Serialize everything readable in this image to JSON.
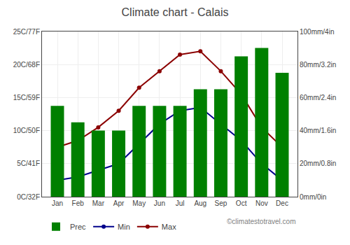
{
  "chart_data": {
    "type": "bar",
    "title": "Climate chart - Calais",
    "categories": [
      "Jan",
      "Feb",
      "Mar",
      "Apr",
      "May",
      "Jun",
      "Jul",
      "Aug",
      "Sep",
      "Oct",
      "Nov",
      "Dec"
    ],
    "series": [
      {
        "name": "Prec",
        "type": "bar",
        "axis": "y2",
        "color": "#008000",
        "values": [
          55,
          45,
          40,
          40,
          55,
          55,
          55,
          65,
          65,
          85,
          90,
          75
        ]
      },
      {
        "name": "Min",
        "type": "line",
        "color": "#00008B",
        "marker": "circle",
        "line_style": "solid",
        "values": [
          2.5,
          3,
          4,
          5,
          8,
          11,
          13,
          13.5,
          11,
          8.5,
          5,
          2.5
        ]
      },
      {
        "name": "Max",
        "type": "line",
        "color": "#8B0000",
        "marker": "circle",
        "line_style": "solid",
        "values": [
          7.5,
          8.5,
          10.5,
          13,
          16.5,
          19,
          21.5,
          22,
          19,
          15.5,
          10.5,
          7.5
        ]
      }
    ],
    "ylim": [
      0,
      25
    ],
    "yticks": [
      {
        "value": 0,
        "label": "0C/32F"
      },
      {
        "value": 5,
        "label": "5C/41F"
      },
      {
        "value": 10,
        "label": "10C/50F"
      },
      {
        "value": 15,
        "label": "15C/59F"
      },
      {
        "value": 20,
        "label": "20C/68F"
      },
      {
        "value": 25,
        "label": "25C/77F"
      }
    ],
    "y2lim": [
      0,
      100
    ],
    "y2ticks": [
      {
        "value": 0,
        "label": "0mm/0in"
      },
      {
        "value": 20,
        "label": "20mm/0.8in"
      },
      {
        "value": 40,
        "label": "40mm/1.6in"
      },
      {
        "value": 60,
        "label": "60mm/2.4in"
      },
      {
        "value": 80,
        "label": "80mm/3.2in"
      },
      {
        "value": 100,
        "label": "100mm/4in"
      }
    ],
    "grid": true,
    "legend": "bottom",
    "annotations": [
      "©climatestotravel.com"
    ]
  }
}
